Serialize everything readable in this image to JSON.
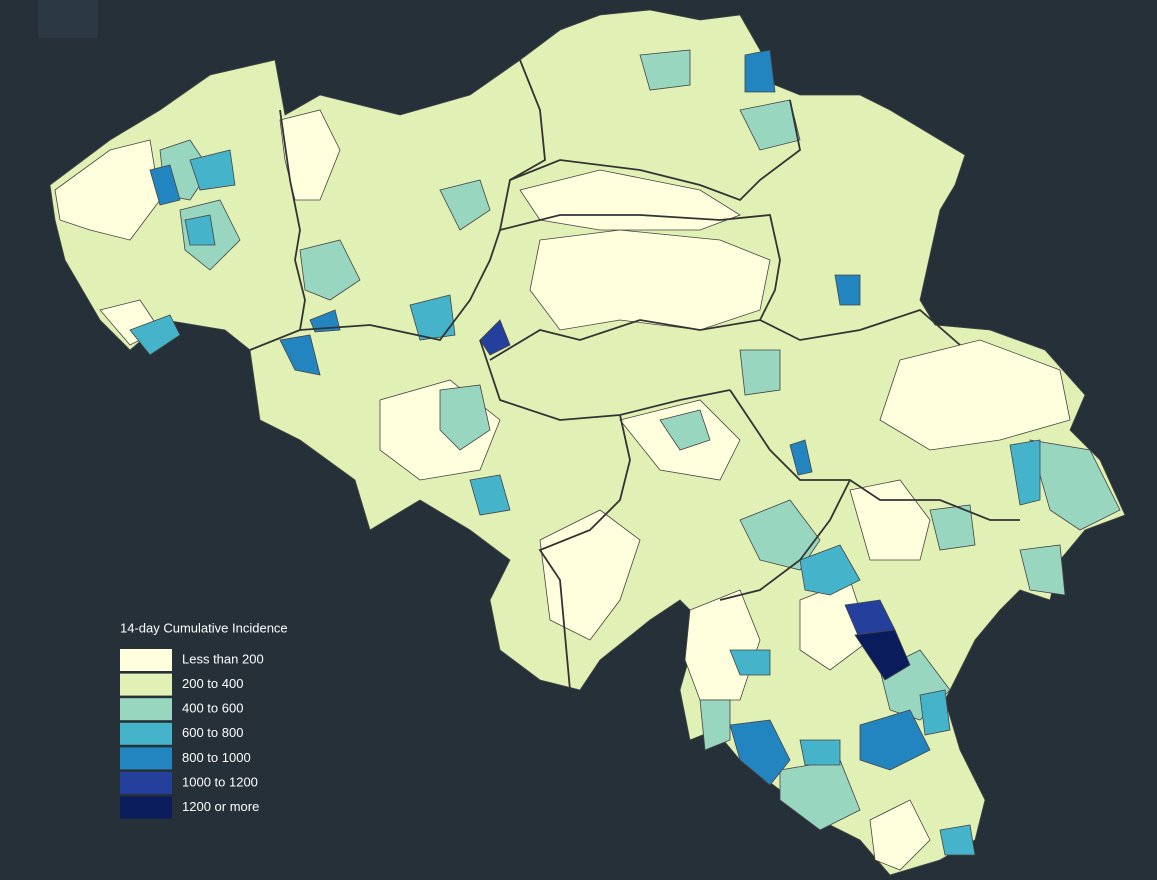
{
  "legend": {
    "title": "14-day Cumulative Incidence",
    "items": [
      {
        "label": "Less than 200",
        "color": "#ffffde"
      },
      {
        "label": "200 to 400",
        "color": "#e1f0b5"
      },
      {
        "label": "400 to 600",
        "color": "#98d6c0"
      },
      {
        "label": "600 to 800",
        "color": "#45b4ca"
      },
      {
        "label": "800 to 1000",
        "color": "#2385c0"
      },
      {
        "label": "1000 to 1200",
        "color": "#24409c"
      },
      {
        "label": "1200 or more",
        "color": "#0b1c5c"
      }
    ]
  }
}
